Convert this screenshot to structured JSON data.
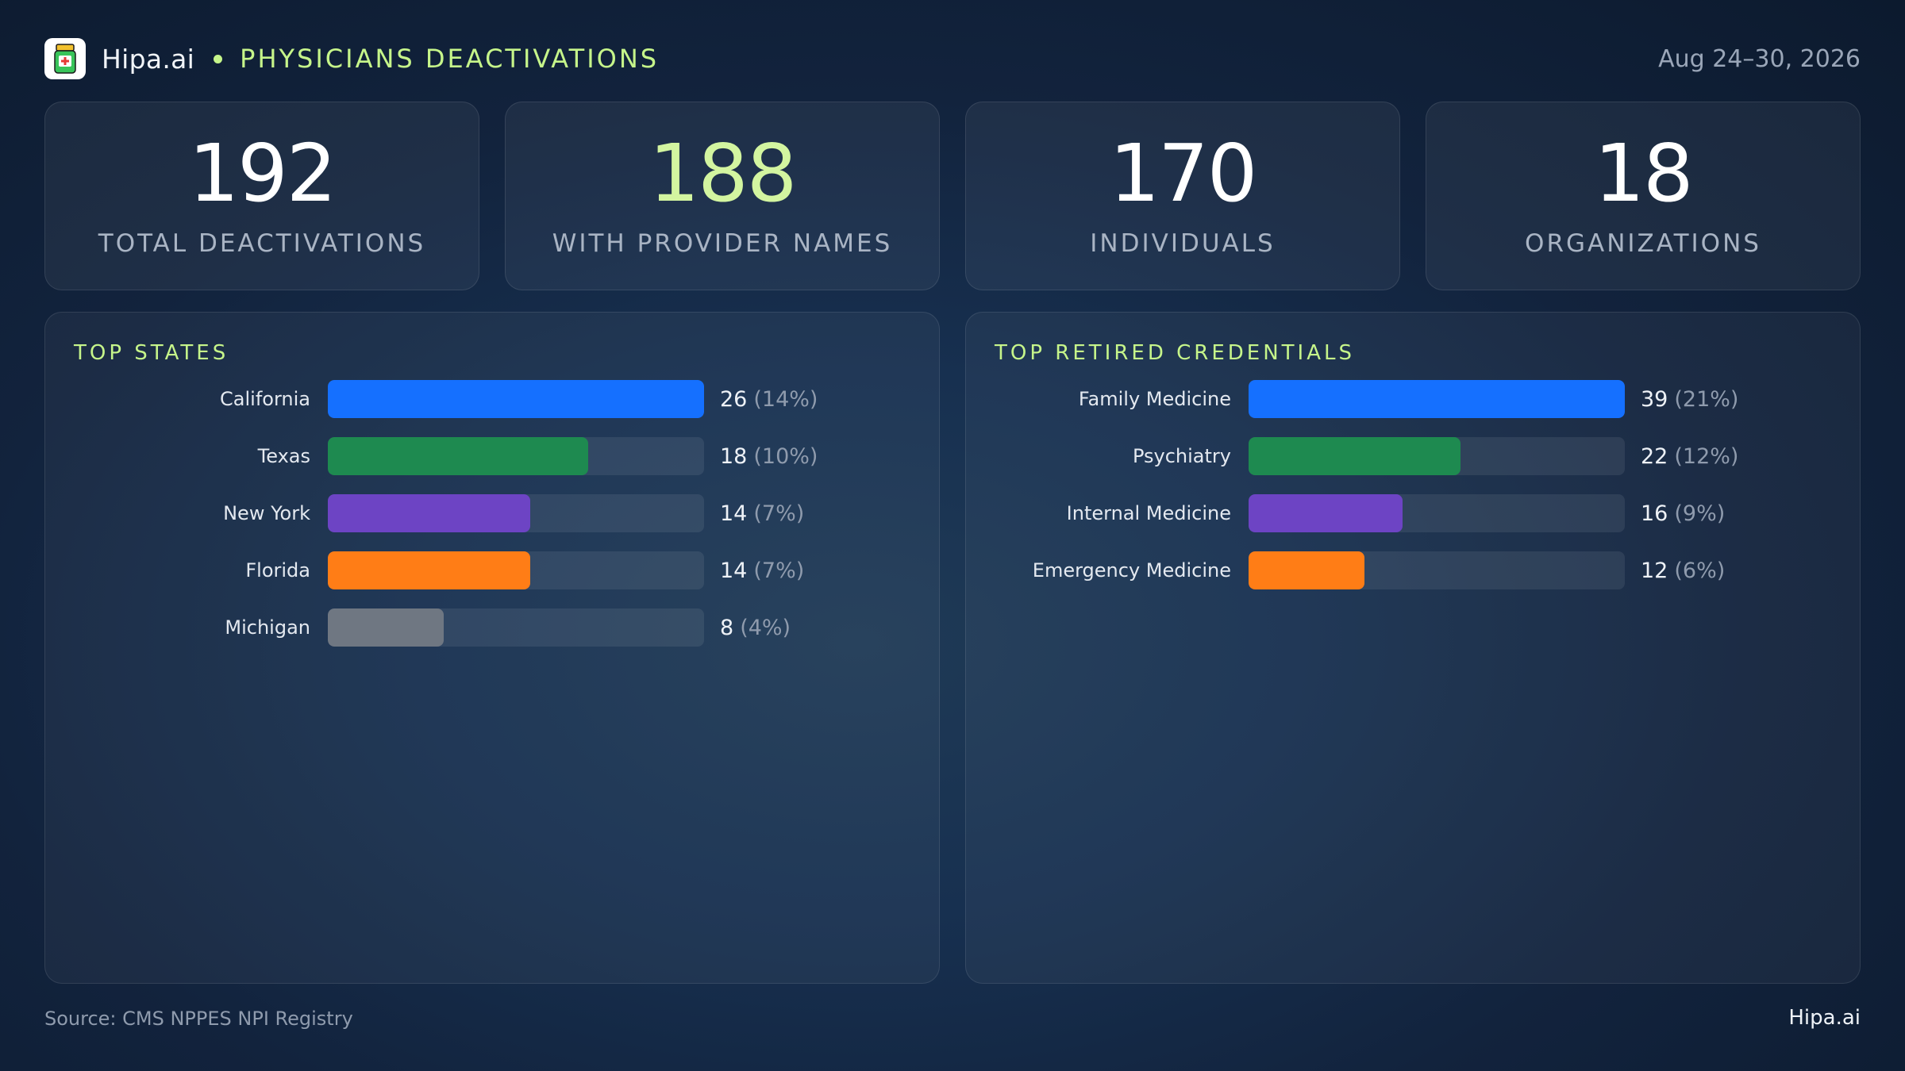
{
  "header": {
    "brand": "Hipa.ai",
    "title": "PHYSICIANS DEACTIVATIONS",
    "date_range": "Aug 24–30, 2026",
    "logo_icon": "pill-bottle-icon"
  },
  "kpis": [
    {
      "value": "192",
      "label": "TOTAL DEACTIVATIONS"
    },
    {
      "value": "188",
      "label": "WITH PROVIDER NAMES"
    },
    {
      "value": "170",
      "label": "INDIVIDUALS"
    },
    {
      "value": "18",
      "label": "ORGANIZATIONS"
    }
  ],
  "colors": {
    "accent": "#c6f58a",
    "blue": "#1570ff",
    "green": "#1e8a50",
    "purple": "#6d44c4",
    "orange": "#ff7d16",
    "gray": "#6f7782"
  },
  "chart_data": [
    {
      "type": "bar",
      "title": "TOP STATES",
      "categories": [
        "California",
        "Texas",
        "New York",
        "Florida",
        "Michigan"
      ],
      "values": [
        26,
        18,
        14,
        14,
        8
      ],
      "percent_labels": [
        "(14%)",
        "(10%)",
        "(7%)",
        "(7%)",
        "(4%)"
      ],
      "bar_colors": [
        "#1570ff",
        "#1e8a50",
        "#6d44c4",
        "#ff7d16",
        "#6f7782"
      ],
      "xlim": [
        0,
        26
      ]
    },
    {
      "type": "bar",
      "title": "TOP RETIRED CREDENTIALS",
      "categories": [
        "Family Medicine",
        "Psychiatry",
        "Internal Medicine",
        "Emergency Medicine"
      ],
      "values": [
        39,
        22,
        16,
        12
      ],
      "percent_labels": [
        "(21%)",
        "(12%)",
        "(9%)",
        "(6%)"
      ],
      "bar_colors": [
        "#1570ff",
        "#1e8a50",
        "#6d44c4",
        "#ff7d16"
      ],
      "xlim": [
        0,
        39
      ]
    }
  ],
  "footer": {
    "source": "Source: CMS NPPES NPI Registry",
    "brand": "Hipa.ai"
  }
}
